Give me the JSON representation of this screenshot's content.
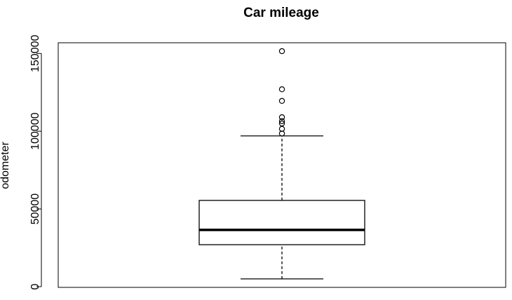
{
  "chart_data": {
    "type": "boxplot",
    "title": "Car mileage",
    "xlabel": "",
    "ylabel": "odometer",
    "ylim": [
      0,
      156000
    ],
    "yticks": [
      0,
      50000,
      100000,
      150000
    ],
    "ytick_labels": [
      "0",
      "50000",
      "100000",
      "150000"
    ],
    "grid": false,
    "box": {
      "whisker_low": 5000,
      "q1": 27000,
      "median": 36500,
      "q3": 55500,
      "whisker_high": 97000
    },
    "outliers": [
      98500,
      101500,
      105000,
      106500,
      109000,
      119500,
      127000,
      151500
    ]
  }
}
